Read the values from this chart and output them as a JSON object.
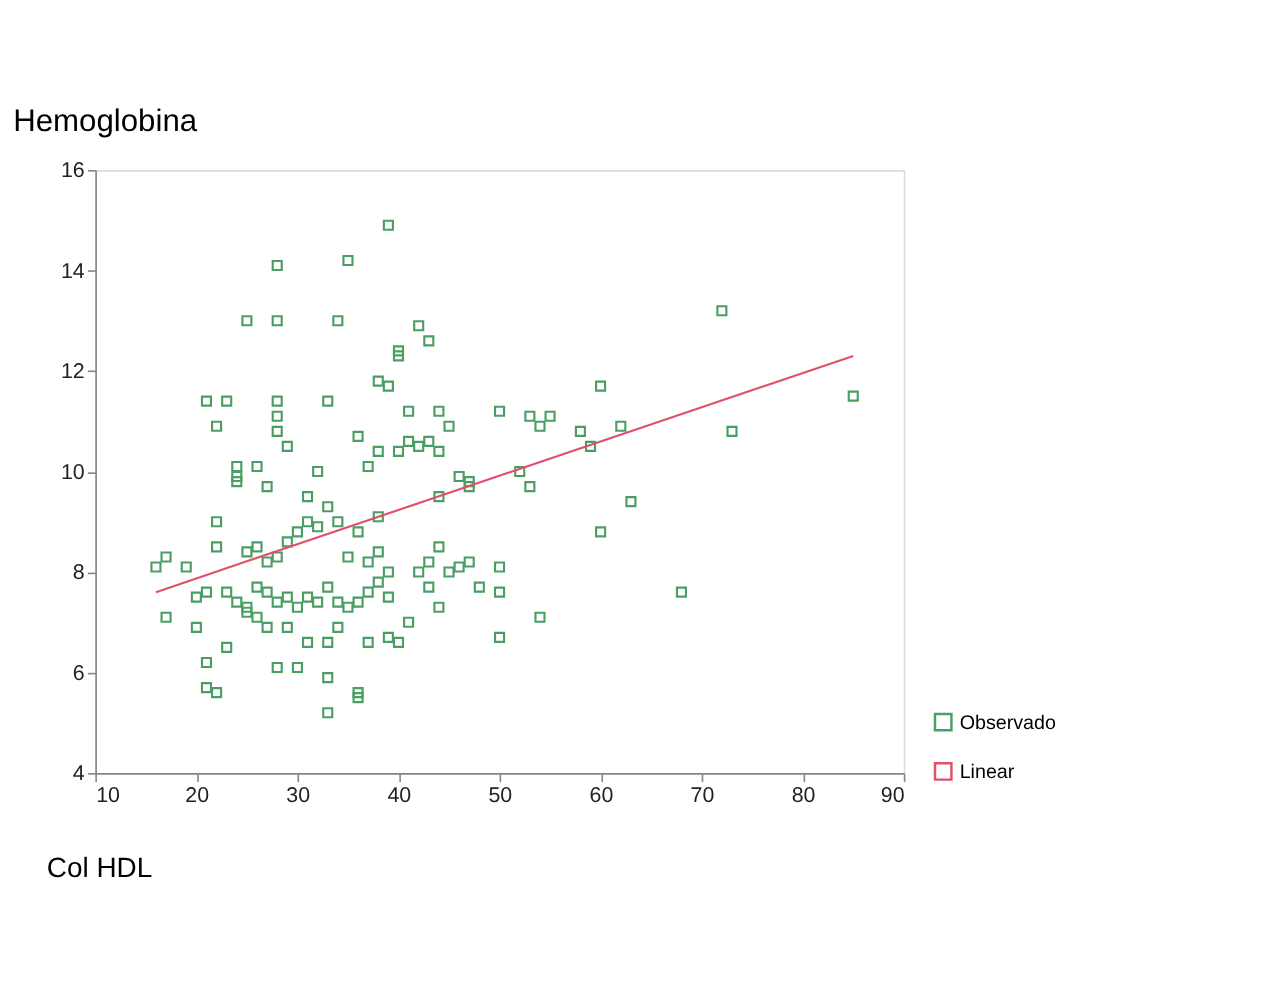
{
  "chart_data": {
    "type": "scatter",
    "title": "Hemoglobina",
    "xlabel": "Col HDL",
    "xlim": [
      10,
      90
    ],
    "ylim": [
      4,
      16
    ],
    "xticks": [
      10,
      20,
      30,
      40,
      50,
      60,
      70,
      80,
      90
    ],
    "yticks": [
      4,
      6,
      8,
      10,
      12,
      14,
      16
    ],
    "grid": false,
    "legend": "bottom right",
    "series": [
      {
        "name": "Observado",
        "marker": "square",
        "color": "#4a9e64",
        "x": [
          28,
          35,
          39,
          40,
          40,
          25,
          28,
          34,
          42,
          43,
          72,
          21,
          23,
          28,
          33,
          28,
          38,
          39,
          41,
          44,
          50,
          53,
          55,
          54,
          60,
          85,
          22,
          28,
          29,
          36,
          45,
          24,
          24,
          24,
          26,
          27,
          32,
          37,
          38,
          40,
          41,
          42,
          43,
          44,
          46,
          47,
          52,
          53,
          58,
          62,
          73,
          59,
          22,
          31,
          33,
          38,
          34,
          36,
          44,
          47,
          60,
          63,
          16,
          17,
          19,
          22,
          25,
          26,
          27,
          28,
          29,
          30,
          31,
          32,
          35,
          37,
          38,
          39,
          42,
          43,
          44,
          45,
          46,
          47,
          48,
          50,
          50,
          17,
          20,
          21,
          23,
          24,
          25,
          25,
          26,
          27,
          28,
          29,
          30,
          31,
          32,
          33,
          34,
          35,
          36,
          37,
          38,
          39,
          41,
          43,
          44,
          54,
          68,
          20,
          23,
          26,
          27,
          29,
          31,
          33,
          34,
          37,
          39,
          40,
          50,
          21,
          22,
          21,
          28,
          30,
          33,
          36,
          36,
          33
        ],
        "values": [
          14.1,
          14.2,
          14.9,
          12.4,
          12.3,
          13,
          13,
          13,
          12.9,
          12.6,
          13.2,
          11.4,
          11.4,
          11.4,
          11.4,
          11.1,
          11.8,
          11.7,
          11.2,
          11.2,
          11.2,
          11.1,
          11.1,
          10.9,
          11.7,
          11.5,
          10.9,
          10.8,
          10.5,
          10.7,
          10.9,
          10.1,
          9.9,
          9.8,
          10.1,
          9.7,
          10.0,
          10.1,
          10.4,
          10.4,
          10.6,
          10.5,
          10.6,
          10.4,
          9.9,
          9.7,
          10.0,
          9.7,
          10.8,
          10.9,
          10.8,
          10.5,
          9.0,
          9.5,
          9.3,
          9.1,
          9.0,
          8.8,
          9.5,
          9.8,
          8.8,
          9.4,
          8.1,
          8.3,
          8.1,
          8.5,
          8.4,
          8.5,
          8.2,
          8.3,
          8.6,
          8.8,
          9.0,
          8.9,
          8.3,
          8.2,
          8.4,
          8.0,
          8.0,
          8.2,
          8.5,
          8.0,
          8.1,
          8.2,
          7.7,
          8.1,
          7.6,
          7.1,
          7.5,
          7.6,
          7.6,
          7.4,
          7.2,
          7.3,
          7.7,
          7.6,
          7.4,
          7.5,
          7.3,
          7.5,
          7.4,
          7.7,
          7.4,
          7.3,
          7.4,
          7.6,
          7.8,
          7.5,
          7.0,
          7.7,
          7.3,
          7.1,
          7.6,
          6.9,
          6.5,
          7.1,
          6.9,
          6.9,
          6.6,
          6.6,
          6.9,
          6.6,
          6.7,
          6.6,
          6.7,
          6.2,
          5.6,
          5.7,
          6.1,
          6.1,
          5.9,
          5.6,
          5.5,
          5.2
        ]
      },
      {
        "name": "Linear",
        "type": "line",
        "color": "#e0506a",
        "x": [
          16,
          85
        ],
        "values": [
          7.6,
          12.3
        ],
        "line_style": "solid",
        "marker": "none"
      }
    ]
  }
}
